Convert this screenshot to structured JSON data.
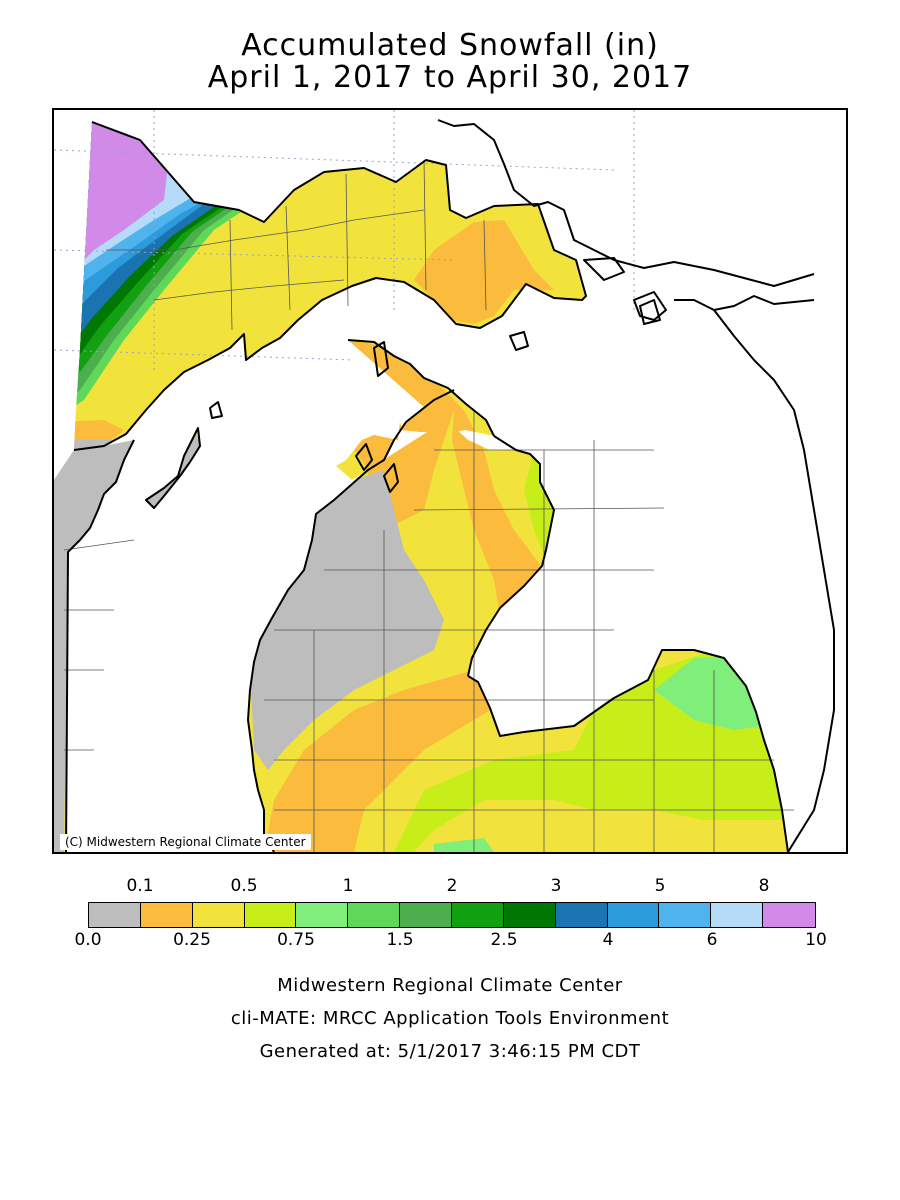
{
  "title": {
    "line1": "Accumulated Snowfall (in)",
    "line2": "April 1, 2017 to April 30, 2017"
  },
  "map": {
    "region": "Michigan",
    "copyright": "(C) Midwestern Regional Climate Center",
    "colors": {
      "water": "#ffffff",
      "outline": "#000000",
      "county_lines": "#555555",
      "grid": "#9aa0c8"
    }
  },
  "legend": {
    "upper_labels": [
      "0.1",
      "0.5",
      "1",
      "2",
      "3",
      "5",
      "8"
    ],
    "lower_labels": [
      "0.0",
      "0.25",
      "0.75",
      "1.5",
      "2.5",
      "4",
      "6",
      "10"
    ],
    "bins": [
      {
        "range": "0.0-0.1",
        "color": "#bdbdbd"
      },
      {
        "range": "0.1-0.25",
        "color": "#fbbb3c"
      },
      {
        "range": "0.25-0.5",
        "color": "#f2e33c"
      },
      {
        "range": "0.5-0.75",
        "color": "#c8ee1a"
      },
      {
        "range": "0.75-1",
        "color": "#80ee7a"
      },
      {
        "range": "1-1.5",
        "color": "#5fd85a"
      },
      {
        "range": "1.5-2",
        "color": "#4cae4c"
      },
      {
        "range": "2-2.5",
        "color": "#10a010"
      },
      {
        "range": "2.5-3",
        "color": "#007700"
      },
      {
        "range": "3-4",
        "color": "#1a74b2"
      },
      {
        "range": "4-5",
        "color": "#2c9bdc"
      },
      {
        "range": "5-6",
        "color": "#4fb3ee"
      },
      {
        "range": "6-8",
        "color": "#b5dbf8"
      },
      {
        "range": "8-10",
        "color": "#d18ae8"
      }
    ]
  },
  "footer": {
    "line1": "Midwestern Regional Climate Center",
    "line2": "cli-MATE: MRCC Application Tools Environment",
    "line3": "Generated at: 5/1/2017 3:46:15 PM CDT"
  }
}
